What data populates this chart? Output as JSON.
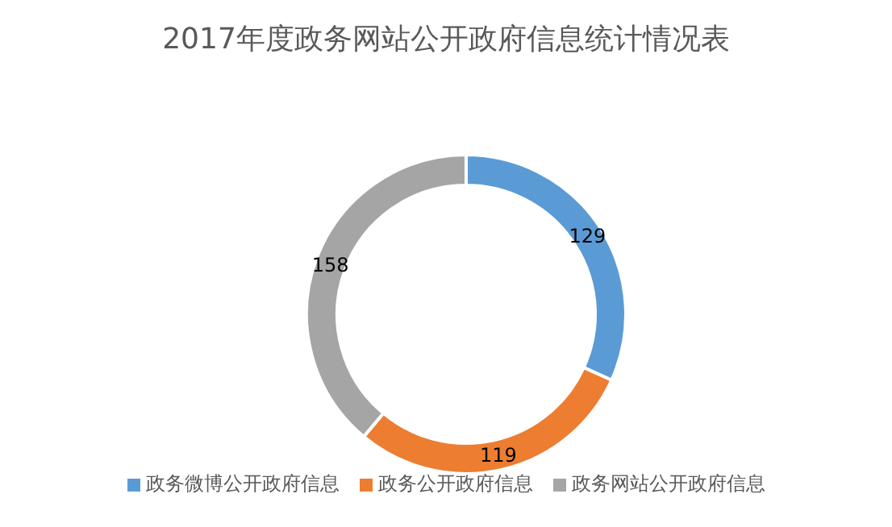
{
  "chart_data": {
    "type": "donut",
    "title": "2017年度政务网站公开政府信息统计情况表",
    "categories": [
      "政务微博公开政府信息",
      "政务公开政府信息",
      "政务网站公开政府信息"
    ],
    "values": [
      129,
      119,
      158
    ],
    "colors": [
      "#5b9bd5",
      "#ed7d31",
      "#a5a5a5"
    ],
    "data_labels": true,
    "legend": "bottom"
  }
}
